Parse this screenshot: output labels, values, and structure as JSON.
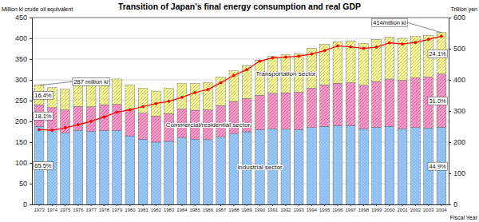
{
  "chart_data": {
    "type": "bar",
    "stacked": true,
    "grid": true,
    "title": "Transition of Japan's final energy consumption and real GDP",
    "y_label": "Million kl crude oil equivalent",
    "y2_label": "Trillion yen",
    "x_label": "Fiscal Year",
    "categories": [
      "1973",
      "1974",
      "1975",
      "1976",
      "1977",
      "1978",
      "1979",
      "1980",
      "1981",
      "1982",
      "1983",
      "1984",
      "1985",
      "1986",
      "1987",
      "1988",
      "1989",
      "1990",
      "1991",
      "1992",
      "1993",
      "1994",
      "1995",
      "1996",
      "1997",
      "1998",
      "1999",
      "2000",
      "2001",
      "2002",
      "2003",
      "2004"
    ],
    "ylim": [
      0,
      450
    ],
    "yticks": [
      0,
      50,
      100,
      150,
      200,
      250,
      300,
      350,
      400,
      450
    ],
    "y2lim": [
      0,
      600
    ],
    "y2ticks": [
      0,
      100,
      200,
      300,
      400,
      500,
      600
    ],
    "series": [
      {
        "name": "Industrial sector",
        "color": "#99ccff",
        "values": [
          188,
          180,
          172,
          178,
          176,
          178,
          178,
          165,
          157,
          150,
          152,
          160,
          157,
          156,
          162,
          170,
          175,
          180,
          182,
          181,
          180,
          185,
          188,
          190,
          190,
          182,
          186,
          188,
          182,
          185,
          184,
          186
        ],
        "share_labels": [
          "65.5%",
          "44.9%"
        ]
      },
      {
        "name": "Commercial/residential sector",
        "color": "#ff99cc",
        "values": [
          52,
          53,
          56,
          58,
          59,
          62,
          63,
          63,
          63,
          63,
          67,
          70,
          70,
          72,
          76,
          78,
          80,
          83,
          86,
          88,
          90,
          95,
          100,
          102,
          103,
          105,
          110,
          114,
          117,
          120,
          123,
          128
        ],
        "share_labels": [
          "18.1%",
          "31.0%"
        ]
      },
      {
        "name": "Transportation sector",
        "color": "#ffff99",
        "values": [
          47,
          48,
          50,
          52,
          55,
          58,
          61,
          60,
          60,
          60,
          61,
          62,
          64,
          66,
          69,
          74,
          79,
          84,
          88,
          91,
          93,
          96,
          98,
          100,
          101,
          101,
          101,
          101,
          101,
          100,
          100,
          100
        ],
        "share_labels": [
          "16.4%",
          "24.1%"
        ]
      },
      {
        "type": "line",
        "axis": "y2",
        "color": "#ff0000",
        "marker": "circle",
        "values": [
          240,
          238,
          246,
          256,
          267,
          281,
          296,
          304,
          314,
          324,
          331,
          344,
          359,
          369,
          391,
          414,
          433,
          460,
          471,
          473,
          476,
          483,
          494,
          509,
          506,
          501,
          505,
          519,
          515,
          520,
          530,
          540
        ]
      }
    ],
    "annotations": [
      {
        "text": "287 million kl"
      },
      {
        "text": "414million kl"
      }
    ]
  }
}
